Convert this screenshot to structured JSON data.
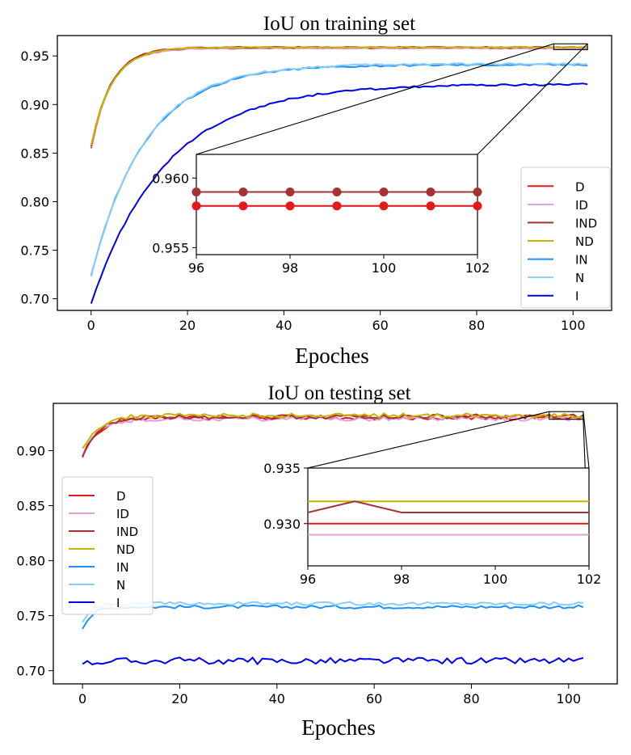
{
  "chart_data": [
    {
      "type": "line",
      "title": "IoU on training set",
      "xlabel": "Epoches",
      "ylabel": "",
      "xlim": [
        -7,
        108
      ],
      "ylim": [
        0.688,
        0.971
      ],
      "xticks": [
        0,
        20,
        40,
        60,
        80,
        100
      ],
      "yticks": [
        0.7,
        0.75,
        0.8,
        0.85,
        0.9,
        0.95
      ],
      "ytick_labels": [
        "0.70",
        "0.75",
        "0.80",
        "0.85",
        "0.90",
        "0.95"
      ],
      "legend_position": "lower-right",
      "grid": false,
      "series": [
        {
          "name": "D",
          "color": "#e31a1c",
          "start": 0.855,
          "end": 0.958,
          "rate": 0.24,
          "noise": 0.0005
        },
        {
          "name": "ID",
          "color": "#e0a0e0",
          "start": 0.856,
          "end": 0.958,
          "rate": 0.24,
          "noise": 0.0005
        },
        {
          "name": "IND",
          "color": "#a83232",
          "start": 0.857,
          "end": 0.959,
          "rate": 0.24,
          "noise": 0.0005
        },
        {
          "name": "ND",
          "color": "#c8b400",
          "start": 0.858,
          "end": 0.959,
          "rate": 0.23,
          "noise": 0.0005
        },
        {
          "name": "IN",
          "color": "#1e90ff",
          "start": 0.724,
          "end": 0.941,
          "rate": 0.09,
          "noise": 0.001
        },
        {
          "name": "N",
          "color": "#87cefa",
          "start": 0.723,
          "end": 0.942,
          "rate": 0.09,
          "noise": 0.001
        },
        {
          "name": "I",
          "color": "#0000ee",
          "start": 0.695,
          "end": 0.921,
          "rate": 0.065,
          "noise": 0.001
        }
      ],
      "inset": {
        "xlim": [
          96,
          102
        ],
        "ylim": [
          0.9545,
          0.9617
        ],
        "xticks": [
          96,
          98,
          100,
          102
        ],
        "yticks": [
          0.955,
          0.96
        ],
        "ytick_labels": [
          "0.955",
          "0.960"
        ],
        "zoom_box": {
          "x": [
            96,
            103
          ],
          "y": [
            0.9565,
            0.9625
          ]
        },
        "series": [
          {
            "name": "ND",
            "color": "#c8b400",
            "values": [
              0.959,
              0.959,
              0.959,
              0.959,
              0.959,
              0.959,
              0.959
            ],
            "markers": false
          },
          {
            "name": "IND",
            "color": "#a83232",
            "values": [
              0.959,
              0.959,
              0.959,
              0.959,
              0.959,
              0.959,
              0.959
            ],
            "markers": true
          },
          {
            "name": "ID",
            "color": "#e0a0e0",
            "values": [
              0.958,
              0.958,
              0.958,
              0.958,
              0.958,
              0.958,
              0.958
            ],
            "markers": false
          },
          {
            "name": "D",
            "color": "#e31a1c",
            "values": [
              0.958,
              0.958,
              0.958,
              0.958,
              0.958,
              0.958,
              0.958
            ],
            "markers": true
          }
        ]
      }
    },
    {
      "type": "line",
      "title": "IoU on testing set",
      "xlabel": "Epoches",
      "ylabel": "",
      "xlim": [
        -6,
        110
      ],
      "ylim": [
        0.688,
        0.943
      ],
      "xticks": [
        0,
        20,
        40,
        60,
        80,
        100
      ],
      "yticks": [
        0.7,
        0.75,
        0.8,
        0.85,
        0.9
      ],
      "ytick_labels": [
        "0.70",
        "0.75",
        "0.80",
        "0.85",
        "0.90"
      ],
      "legend_position": "center-left",
      "grid": false,
      "series": [
        {
          "name": "D",
          "color": "#e31a1c",
          "start": 0.895,
          "end": 0.93,
          "rate": 0.3,
          "noise": 0.002
        },
        {
          "name": "ID",
          "color": "#e0a0e0",
          "start": 0.896,
          "end": 0.929,
          "rate": 0.3,
          "noise": 0.002
        },
        {
          "name": "IND",
          "color": "#a83232",
          "start": 0.894,
          "end": 0.931,
          "rate": 0.3,
          "noise": 0.002
        },
        {
          "name": "ND",
          "color": "#c8b400",
          "start": 0.902,
          "end": 0.932,
          "rate": 0.3,
          "noise": 0.002
        },
        {
          "name": "IN",
          "color": "#1e90ff",
          "start": 0.738,
          "end": 0.758,
          "rate": 0.5,
          "noise": 0.0015
        },
        {
          "name": "N",
          "color": "#87cefa",
          "start": 0.744,
          "end": 0.761,
          "rate": 0.5,
          "noise": 0.0015
        },
        {
          "name": "I",
          "color": "#0000ee",
          "start": 0.706,
          "end": 0.709,
          "rate": 0.5,
          "noise": 0.003
        }
      ],
      "inset": {
        "xlim": [
          96,
          102
        ],
        "ylim": [
          0.9262,
          0.935
        ],
        "xticks": [
          96,
          98,
          100,
          102
        ],
        "yticks": [
          0.93,
          0.935
        ],
        "ytick_labels": [
          "0.930",
          "0.935"
        ],
        "zoom_box": {
          "x": [
            96,
            103
          ],
          "y": [
            0.9285,
            0.9355
          ]
        },
        "series": [
          {
            "name": "ND",
            "color": "#c8b400",
            "values": [
              0.932,
              0.932,
              0.932,
              0.932,
              0.932,
              0.932,
              0.932
            ],
            "markers": false
          },
          {
            "name": "IND",
            "color": "#a83232",
            "values": [
              0.931,
              0.932,
              0.931,
              0.931,
              0.931,
              0.931,
              0.931
            ],
            "markers": false
          },
          {
            "name": "D",
            "color": "#e31a1c",
            "values": [
              0.93,
              0.93,
              0.93,
              0.93,
              0.93,
              0.93,
              0.93
            ],
            "markers": false
          },
          {
            "name": "ID",
            "color": "#e0a0e0",
            "values": [
              0.929,
              0.929,
              0.929,
              0.929,
              0.929,
              0.929,
              0.929
            ],
            "markers": false
          }
        ]
      }
    }
  ]
}
